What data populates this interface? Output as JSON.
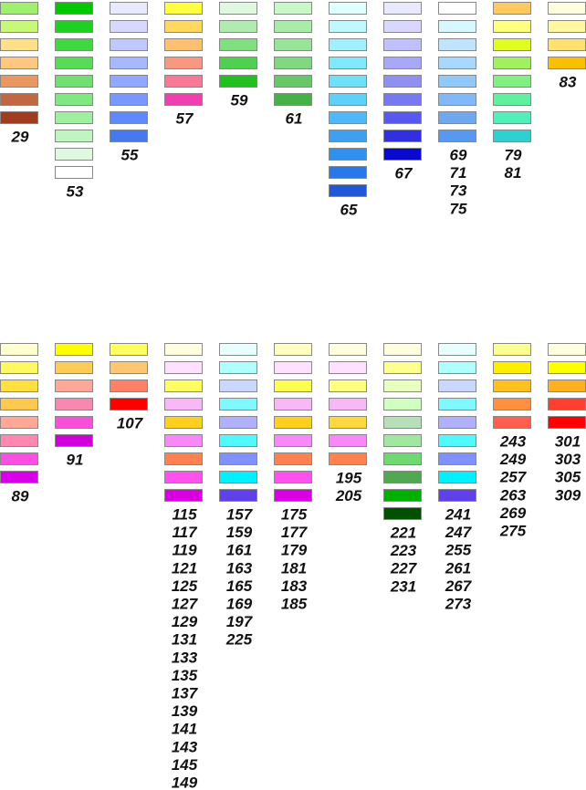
{
  "rows": [
    {
      "groups": [
        {
          "colors": [
            "#a0f070",
            "#c8f878",
            "#ffe088",
            "#ffc880",
            "#e89860",
            "#c06840",
            "#a03c20"
          ],
          "labels": [
            29
          ]
        },
        {
          "colors": [
            "#00c800",
            "#20d020",
            "#40d840",
            "#58dc58",
            "#70e070",
            "#80e880",
            "#a0eea0",
            "#c0f4c0",
            "#e0f8e0",
            "#ffffff"
          ],
          "labels": [
            53
          ]
        },
        {
          "colors": [
            "#e8e8ff",
            "#d8d8ff",
            "#c0c8ff",
            "#a8b8ff",
            "#90a8ff",
            "#7898ff",
            "#6088ff",
            "#4878f0"
          ],
          "labels": [
            55
          ]
        },
        {
          "colors": [
            "#ffff40",
            "#ffd860",
            "#ffc070",
            "#f89880",
            "#f87898",
            "#f040b0"
          ],
          "labels": [
            57
          ]
        },
        {
          "colors": [
            "#e0f8e0",
            "#b0ecb0",
            "#80e080",
            "#50d050",
            "#20c020"
          ],
          "labels": [
            59
          ]
        },
        {
          "colors": [
            "#c8f8c8",
            "#a8eca8",
            "#98e498",
            "#80d880",
            "#68c868",
            "#48b048"
          ],
          "labels": [
            61
          ]
        },
        {
          "colors": [
            "#e0ffff",
            "#c0f8ff",
            "#a0f0ff",
            "#80e8ff",
            "#70e0f8",
            "#60d0f8",
            "#50b8f8",
            "#40a0f0",
            "#3090f0",
            "#2878e8",
            "#2058d8"
          ],
          "labels": [
            65
          ]
        },
        {
          "colors": [
            "#e8e8ff",
            "#d8d8ff",
            "#c0c0ff",
            "#a8a8f8",
            "#9090f0",
            "#7878f0",
            "#5858f0",
            "#3030e0",
            "#0808d0"
          ],
          "labels": [
            67
          ]
        },
        {
          "colors": [
            "#ffffff",
            "#d8f8ff",
            "#c0e4ff",
            "#a8d8ff",
            "#90c8f8",
            "#80b8f8",
            "#70a8f0",
            "#5898f0"
          ],
          "labels": [
            69,
            71,
            73,
            75
          ]
        },
        {
          "colors": [
            "#ffc860",
            "#ffff80",
            "#e0ff20",
            "#a0f060",
            "#80f080",
            "#60f0a0",
            "#50f0b8",
            "#30d0d0"
          ],
          "labels": [
            79,
            81
          ]
        },
        {
          "colors": [
            "#ffffe0",
            "#fff8a0",
            "#ffe070",
            "#f8c000"
          ],
          "labels": [
            83
          ]
        }
      ]
    },
    {
      "groups": [
        {
          "colors": [
            "#ffffd0",
            "#fff860",
            "#ffe040",
            "#ffc850",
            "#ffa898",
            "#ff88b0",
            "#f850e0",
            "#d800e8"
          ],
          "labels": [
            89
          ]
        },
        {
          "colors": [
            "#ffff00",
            "#ffcc55",
            "#ffa898",
            "#f888b0",
            "#f850d8",
            "#d000d8"
          ],
          "labels": [
            91
          ]
        },
        {
          "colors": [
            "#ffff60",
            "#ffc870",
            "#ff8068",
            "#ff0000"
          ],
          "labels": [
            107
          ]
        },
        {
          "colors": [
            "#ffffe0",
            "#ffe0ff",
            "#ffff60",
            "#f8b8f8",
            "#ffd020",
            "#f888f8",
            "#ff8050",
            "#ff50f0",
            "#d800e0"
          ],
          "labels": [
            115,
            117,
            119,
            121,
            125,
            127,
            129,
            131,
            133,
            135,
            137,
            139,
            141,
            143,
            145,
            149
          ]
        },
        {
          "colors": [
            "#e8ffff",
            "#b0ffff",
            "#c8d8ff",
            "#80f8ff",
            "#b0b0ff",
            "#50f8ff",
            "#8090ff",
            "#00f0ff",
            "#6040e8"
          ],
          "labels": [
            157,
            159,
            161,
            163,
            165,
            169,
            197,
            225
          ]
        },
        {
          "colors": [
            "#ffffc0",
            "#ffe0ff",
            "#ffff50",
            "#f8b8f8",
            "#ffd020",
            "#f888f8",
            "#ff8050",
            "#ff50f0",
            "#d800e0"
          ],
          "labels": [
            175,
            177,
            179,
            181,
            183,
            185
          ]
        },
        {
          "colors": [
            "#ffffe0",
            "#ffe0ff",
            "#ffff80",
            "#f8b8f8",
            "#ffd840",
            "#f888f8",
            "#ff8050"
          ],
          "labels": [
            195,
            205
          ]
        },
        {
          "colors": [
            "#ffffe0",
            "#ffff90",
            "#e8ffc0",
            "#d0ffc0",
            "#b8e0b8",
            "#a0e8a0",
            "#70d870",
            "#50a850",
            "#00b000",
            "#005000"
          ],
          "labels": [
            221,
            223,
            227,
            231
          ]
        },
        {
          "colors": [
            "#e8ffff",
            "#b0ffff",
            "#c8d8ff",
            "#80f8ff",
            "#b0b0ff",
            "#50f8ff",
            "#8090ff",
            "#00f0ff",
            "#6040e8"
          ],
          "labels": [
            241,
            247,
            255,
            261,
            267,
            273
          ]
        },
        {
          "colors": [
            "#ffff90",
            "#ffee00",
            "#ffc020",
            "#ff9040",
            "#ff6050"
          ],
          "labels": [
            243,
            249,
            257,
            263,
            269,
            275
          ]
        },
        {
          "colors": [
            "#ffffe0",
            "#ffff00",
            "#ffb020",
            "#ff4030",
            "#ff0000"
          ],
          "labels": [
            301,
            303,
            305,
            309
          ]
        }
      ]
    }
  ]
}
